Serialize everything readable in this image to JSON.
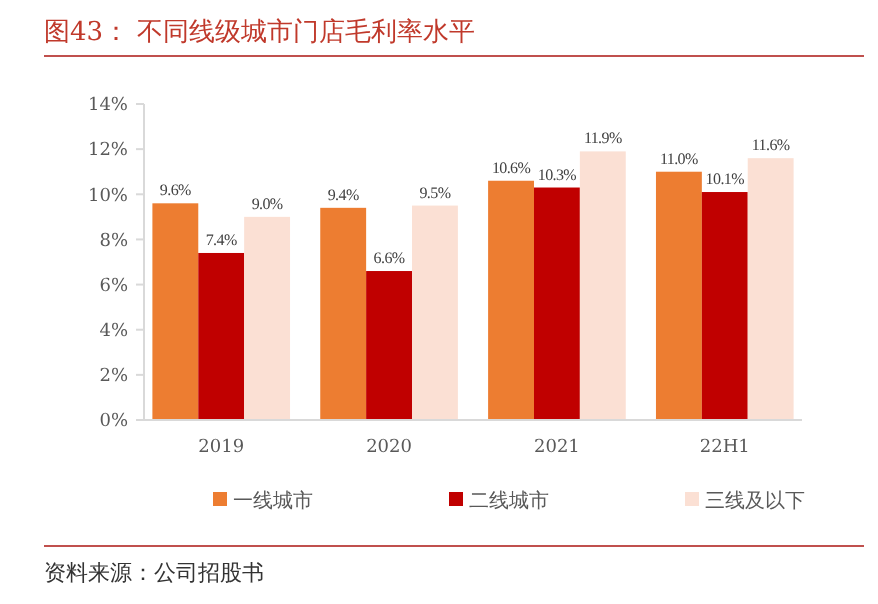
{
  "chart_data": {
    "type": "bar",
    "title": "图43：  不同线级城市门店毛利率水平",
    "categories": [
      "2019",
      "2020",
      "2021",
      "22H1"
    ],
    "series": [
      {
        "name": "一线城市",
        "color": "#ed7d31",
        "values": [
          9.6,
          9.4,
          10.6,
          11.0
        ],
        "value_labels": [
          "9.6%",
          "9.4%",
          "10.6%",
          "11.0%"
        ]
      },
      {
        "name": "二线城市",
        "color": "#c00000",
        "values": [
          7.4,
          6.6,
          10.3,
          10.1
        ],
        "value_labels": [
          "7.4%",
          "6.6%",
          "10.3%",
          "10.1%"
        ]
      },
      {
        "name": "三线及以下",
        "color": "#fbe0d4",
        "values": [
          9.0,
          9.5,
          11.9,
          11.6
        ],
        "value_labels": [
          "9.0%",
          "9.5%",
          "11.9%",
          "11.6%"
        ]
      }
    ],
    "ylim": [
      0,
      14
    ],
    "yticks": [
      {
        "value": 0,
        "label": "0%"
      },
      {
        "value": 2,
        "label": "2%"
      },
      {
        "value": 4,
        "label": "4%"
      },
      {
        "value": 6,
        "label": "6%"
      },
      {
        "value": 8,
        "label": "8%"
      },
      {
        "value": 10,
        "label": "10%"
      },
      {
        "value": 12,
        "label": "12%"
      },
      {
        "value": 14,
        "label": "14%"
      }
    ],
    "grid": false,
    "legend": "bottom",
    "annotations": [
      "资料来源：公司招股书"
    ]
  }
}
